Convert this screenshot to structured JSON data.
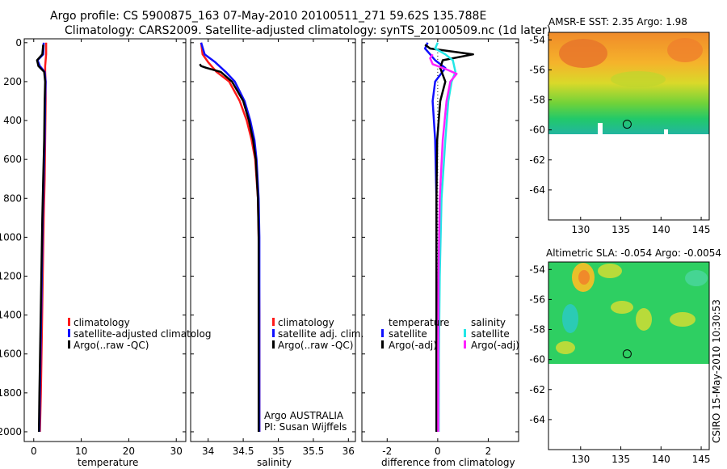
{
  "title": {
    "line1": "Argo profile: CS 5900875_163 07-May-2010 20100511_271 59.62S 135.788E",
    "line2": "Climatology: CARS2009. Satellite-adjusted climatology: synTS_20100509.nc (1d later)"
  },
  "side_label": "CSIRO 15-May-2010 10:30:53",
  "colors": {
    "climatology": "#ff1a1a",
    "satellite": "#1010ff",
    "argo": "#000000",
    "satellite_salinity": "#22e6e6",
    "argo_salinity_adj": "#ff22ff"
  },
  "chart_data": [
    {
      "type": "line",
      "name": "temperature-panel",
      "xlabel": "temperature",
      "ylabel": "",
      "xlim": [
        -2,
        32
      ],
      "ylim": [
        2050,
        -20
      ],
      "xticks": [
        0,
        10,
        20,
        30
      ],
      "yticks": [
        0,
        200,
        400,
        600,
        800,
        1000,
        1200,
        1400,
        1600,
        1800,
        2000
      ],
      "legend": [
        "climatology",
        "satellite-adjusted climatolog",
        "Argo(..raw -QC)"
      ],
      "series": [
        {
          "name": "climatology",
          "color_key": "climatology",
          "x": [
            2.6,
            2.6,
            2.5,
            2.4,
            2.4,
            2.5,
            2.5,
            2.4,
            2.3,
            2.1,
            1.9,
            1.7,
            1.5,
            1.3
          ],
          "y": [
            0,
            60,
            90,
            120,
            150,
            200,
            300,
            500,
            700,
            900,
            1200,
            1500,
            1800,
            2000
          ]
        },
        {
          "name": "satellite-adjusted climatolog",
          "color_key": "satellite",
          "x": [
            2.1,
            2.0,
            0.8,
            1.3,
            2.3,
            2.5,
            2.4,
            2.3,
            2.1,
            1.9,
            1.7,
            1.5,
            1.3,
            1.2
          ],
          "y": [
            0,
            60,
            90,
            120,
            150,
            200,
            300,
            500,
            700,
            900,
            1200,
            1500,
            1800,
            2000
          ]
        },
        {
          "name": "Argo(..raw -QC)",
          "color_key": "argo",
          "x": [
            2.0,
            1.8,
            0.7,
            1.0,
            2.2,
            2.4,
            2.3,
            2.2,
            2.0,
            1.8,
            1.6,
            1.4,
            1.2,
            1.1
          ],
          "y": [
            10,
            60,
            90,
            120,
            150,
            200,
            300,
            500,
            700,
            900,
            1200,
            1500,
            1800,
            2000
          ]
        }
      ]
    },
    {
      "type": "line",
      "name": "salinity-panel",
      "xlabel": "salinity",
      "ylabel": "",
      "xlim": [
        33.75,
        36.1
      ],
      "ylim": [
        2050,
        -20
      ],
      "xticks": [
        34,
        34.5,
        35,
        35.5,
        36
      ],
      "xticklabels": [
        "34",
        "34.5",
        "35",
        "35.5",
        "36"
      ],
      "legend": [
        "climatology",
        "satellite adj. clim.",
        "Argo(..raw -QC)"
      ],
      "annotations": [
        "Argo AUSTRALIA",
        "PI: Susan Wijffels"
      ],
      "series": [
        {
          "name": "climatology",
          "color_key": "climatology",
          "x": [
            33.9,
            33.92,
            34.0,
            34.12,
            34.3,
            34.45,
            34.55,
            34.62,
            34.67,
            34.71,
            34.72,
            34.73,
            34.73,
            34.73
          ],
          "y": [
            0,
            60,
            100,
            150,
            200,
            300,
            400,
            500,
            600,
            800,
            1000,
            1400,
            1800,
            2000
          ]
        },
        {
          "name": "satellite adj. clim.",
          "color_key": "satellite",
          "x": [
            33.9,
            33.95,
            34.1,
            34.25,
            34.38,
            34.52,
            34.6,
            34.66,
            34.69,
            34.72,
            34.73,
            34.73,
            34.73,
            34.73
          ],
          "y": [
            0,
            60,
            100,
            150,
            200,
            300,
            400,
            500,
            600,
            800,
            1000,
            1400,
            1800,
            2000
          ]
        },
        {
          "name": "Argo(..raw -QC)",
          "color_key": "argo",
          "x": [
            33.88,
            33.9,
            33.98,
            34.18,
            34.34,
            34.5,
            34.58,
            34.64,
            34.68,
            34.71,
            34.72,
            34.72,
            34.72,
            34.72
          ],
          "y": [
            110,
            120,
            130,
            150,
            200,
            300,
            400,
            500,
            600,
            800,
            1000,
            1400,
            1800,
            2000
          ]
        }
      ]
    },
    {
      "type": "line",
      "name": "difference-panel",
      "xlabel": "difference from climatology",
      "ylabel": "",
      "xlim": [
        -3,
        3.2
      ],
      "ylim": [
        2050,
        -20
      ],
      "xticks": [
        -2,
        0,
        2
      ],
      "legend_titles": [
        "temperature",
        "salinity"
      ],
      "legend": [
        "satellite",
        "Argo(-adj)",
        "satellite",
        "Argo(-adj)"
      ],
      "series": [
        {
          "name": "temperature satellite",
          "color_key": "satellite",
          "x": [
            -0.4,
            -0.5,
            -0.3,
            -0.1,
            0.3,
            -0.1,
            -0.2,
            -0.1,
            -0.05,
            -0.05,
            -0.05,
            -0.05
          ],
          "y": [
            0,
            30,
            60,
            90,
            130,
            200,
            300,
            500,
            800,
            1200,
            1600,
            2000
          ]
        },
        {
          "name": "temperature Argo(-adj)",
          "color_key": "argo",
          "x": [
            -0.5,
            -0.3,
            1.4,
            0.2,
            0.1,
            0.3,
            0.1,
            -0.02,
            -0.05,
            -0.05,
            -0.05,
            -0.05
          ],
          "y": [
            10,
            30,
            60,
            90,
            130,
            200,
            300,
            500,
            800,
            1200,
            1600,
            2000
          ]
        },
        {
          "name": "salinity satellite",
          "color_key": "satellite_salinity",
          "x": [
            0.0,
            -0.1,
            0.3,
            0.6,
            0.7,
            0.55,
            0.42,
            0.3,
            0.15,
            0.08,
            0.05,
            0.04
          ],
          "y": [
            0,
            30,
            60,
            90,
            150,
            200,
            300,
            500,
            800,
            1200,
            1600,
            2000
          ]
        },
        {
          "name": "salinity Argo(-adj)",
          "color_key": "argo_salinity_adj",
          "x": [
            -0.2,
            -0.3,
            -0.2,
            0.4,
            0.75,
            0.5,
            0.35,
            0.2,
            0.08,
            0.03,
            0.02,
            0.02
          ],
          "y": [
            60,
            80,
            110,
            140,
            160,
            200,
            300,
            500,
            800,
            1200,
            1600,
            2000
          ]
        }
      ]
    },
    {
      "type": "heatmap",
      "name": "sst-map",
      "title": "AMSR-E SST: 2.35 Argo: 1.98",
      "xlim": [
        126,
        146
      ],
      "ylim": [
        -66,
        -53.5
      ],
      "xticks": [
        130,
        135,
        140,
        145
      ],
      "yticks": [
        -54,
        -56,
        -58,
        -60,
        -62,
        -64
      ],
      "data_lat_range": [
        -60,
        -53.5
      ],
      "float_position": {
        "lon": 135.788,
        "lat": -59.62
      }
    },
    {
      "type": "heatmap",
      "name": "sla-map",
      "title": "Altimetric SLA: -0.054 Argo: -0.0054",
      "xlim": [
        126,
        146
      ],
      "ylim": [
        -66,
        -53.5
      ],
      "xticks": [
        130,
        135,
        140,
        145
      ],
      "yticks": [
        -54,
        -56,
        -58,
        -60,
        -62,
        -64
      ],
      "data_lat_range": [
        -60,
        -53.5
      ],
      "float_position": {
        "lon": 135.788,
        "lat": -59.62
      }
    }
  ]
}
